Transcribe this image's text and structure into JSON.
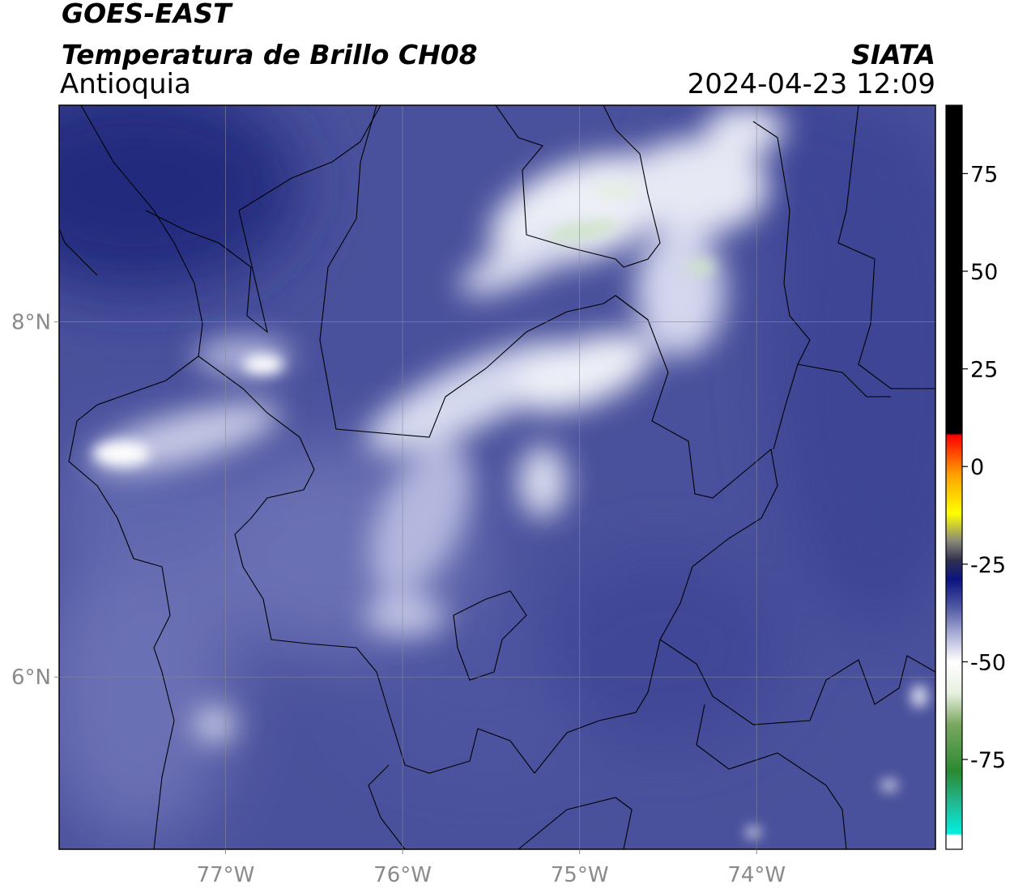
{
  "chart_data": {
    "type": "map",
    "title": "GOES-EAST",
    "subtitle": "Temperatura de Brillo CH08",
    "region": "Antioquia",
    "source": "SIATA",
    "datetime": "2024-04-23 12:09",
    "xlim": [
      -77.94,
      -72.99
    ],
    "ylim": [
      5.03,
      9.22
    ],
    "xticks": [
      {
        "value": -77,
        "label": "77°W"
      },
      {
        "value": -76,
        "label": "76°W"
      },
      {
        "value": -75,
        "label": "75°W"
      },
      {
        "value": -74,
        "label": "74°W"
      }
    ],
    "yticks": [
      {
        "value": 8,
        "label": "8°N"
      },
      {
        "value": 6,
        "label": "6°N"
      }
    ],
    "grid": true,
    "colorbar": {
      "lim": [
        -98,
        92.5
      ],
      "ticks": [
        75,
        50,
        25,
        0,
        -25,
        -50,
        -75
      ],
      "stops": [
        {
          "value": -98,
          "color": "#ffffff"
        },
        {
          "value": -94.5,
          "color": "#ffffff"
        },
        {
          "value": -94,
          "color": "#00f0e0"
        },
        {
          "value": -86,
          "color": "#22b890"
        },
        {
          "value": -78,
          "color": "#2a8a30"
        },
        {
          "value": -66,
          "color": "#7aa860"
        },
        {
          "value": -58,
          "color": "#e8f0e0"
        },
        {
          "value": -50,
          "color": "#ffffff"
        },
        {
          "value": -44,
          "color": "#b8bcdc"
        },
        {
          "value": -36,
          "color": "#5058a4"
        },
        {
          "value": -29,
          "color": "#0c1480"
        },
        {
          "value": -24,
          "color": "#303050"
        },
        {
          "value": -19,
          "color": "#8a8a78"
        },
        {
          "value": -12,
          "color": "#ffff00"
        },
        {
          "value": -2,
          "color": "#ffa000"
        },
        {
          "value": 8,
          "color": "#ff0000"
        },
        {
          "value": 8.5,
          "color": "#000000"
        },
        {
          "value": 92.5,
          "color": "#000000"
        }
      ]
    }
  }
}
